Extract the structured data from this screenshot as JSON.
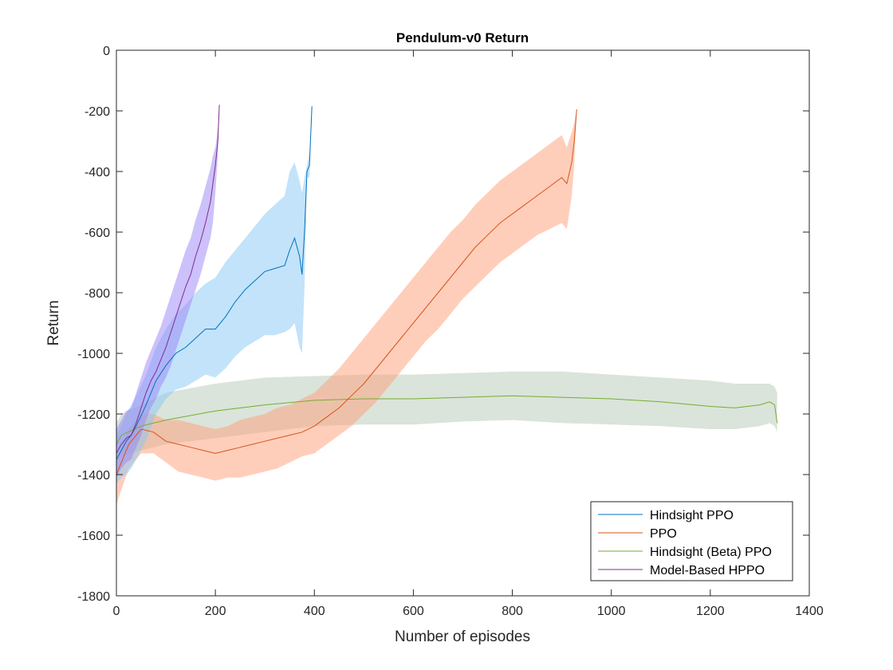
{
  "chart_data": {
    "type": "line",
    "title": "Pendulum-v0 Return",
    "xlabel": "Number of episodes",
    "ylabel": "Return",
    "xlim": [
      0,
      1400
    ],
    "ylim": [
      -1800,
      0
    ],
    "xticks": [
      0,
      200,
      400,
      600,
      800,
      1000,
      1200,
      1400
    ],
    "yticks": [
      0,
      -200,
      -400,
      -600,
      -800,
      -1000,
      -1200,
      -1400,
      -1600,
      -1800
    ],
    "xtick_labels": [
      "0",
      "200",
      "400",
      "600",
      "800",
      "1000",
      "1200",
      "1400"
    ],
    "ytick_labels": [
      "0",
      "-200",
      "-400",
      "-600",
      "-800",
      "-1000",
      "-1200",
      "-1400",
      "-1600",
      "-1800"
    ],
    "grid": false,
    "legend_position": "bottom-right",
    "series": [
      {
        "name": "Hindsight PPO",
        "color": "#0072BD",
        "band_color": "#87C8F5",
        "x": [
          0,
          10,
          20,
          30,
          40,
          60,
          80,
          100,
          120,
          140,
          160,
          180,
          200,
          220,
          240,
          260,
          280,
          300,
          320,
          340,
          350,
          360,
          370,
          375,
          380,
          385,
          390,
          395
        ],
        "mean": [
          -1350,
          -1320,
          -1290,
          -1270,
          -1240,
          -1170,
          -1090,
          -1040,
          -1000,
          -980,
          -950,
          -920,
          -920,
          -880,
          -830,
          -790,
          -760,
          -730,
          -720,
          -710,
          -660,
          -620,
          -680,
          -740,
          -600,
          -400,
          -380,
          -185
        ],
        "upper": [
          -1270,
          -1240,
          -1200,
          -1170,
          -1140,
          -1070,
          -980,
          -920,
          -870,
          -840,
          -800,
          -770,
          -750,
          -700,
          -660,
          -620,
          -580,
          -540,
          -510,
          -480,
          -400,
          -370,
          -430,
          -470,
          -420,
          -380,
          -340,
          -185
        ],
        "lower": [
          -1430,
          -1410,
          -1400,
          -1380,
          -1350,
          -1290,
          -1200,
          -1150,
          -1120,
          -1110,
          -1090,
          -1070,
          -1080,
          -1050,
          -1010,
          -980,
          -960,
          -940,
          -940,
          -930,
          -920,
          -900,
          -980,
          -1000,
          -780,
          -420,
          -420,
          -185
        ]
      },
      {
        "name": "PPO",
        "color": "#D95319",
        "band_color": "#FF9E78",
        "x": [
          0,
          10,
          25,
          50,
          75,
          100,
          125,
          150,
          175,
          200,
          225,
          250,
          275,
          300,
          325,
          350,
          375,
          400,
          425,
          450,
          475,
          500,
          525,
          550,
          575,
          600,
          625,
          650,
          675,
          700,
          725,
          750,
          775,
          800,
          825,
          850,
          875,
          900,
          910,
          920,
          925,
          930
        ],
        "mean": [
          -1400,
          -1360,
          -1300,
          -1250,
          -1260,
          -1290,
          -1300,
          -1310,
          -1320,
          -1330,
          -1320,
          -1310,
          -1300,
          -1290,
          -1280,
          -1270,
          -1260,
          -1240,
          -1210,
          -1180,
          -1140,
          -1100,
          -1050,
          -1000,
          -950,
          -900,
          -850,
          -800,
          -750,
          -700,
          -650,
          -610,
          -570,
          -540,
          -510,
          -480,
          -450,
          -420,
          -440,
          -370,
          -300,
          -195
        ],
        "upper": [
          -1350,
          -1310,
          -1250,
          -1200,
          -1200,
          -1220,
          -1220,
          -1230,
          -1240,
          -1250,
          -1240,
          -1220,
          -1210,
          -1200,
          -1180,
          -1170,
          -1150,
          -1130,
          -1090,
          -1050,
          -1000,
          -950,
          -900,
          -850,
          -800,
          -750,
          -700,
          -650,
          -600,
          -560,
          -510,
          -470,
          -430,
          -400,
          -370,
          -340,
          -310,
          -280,
          -320,
          -270,
          -240,
          -195
        ],
        "lower": [
          -1500,
          -1450,
          -1380,
          -1330,
          -1330,
          -1360,
          -1390,
          -1400,
          -1410,
          -1420,
          -1410,
          -1410,
          -1400,
          -1390,
          -1380,
          -1360,
          -1340,
          -1330,
          -1300,
          -1270,
          -1240,
          -1200,
          -1160,
          -1110,
          -1060,
          -1010,
          -960,
          -920,
          -870,
          -820,
          -780,
          -740,
          -700,
          -670,
          -640,
          -610,
          -590,
          -570,
          -590,
          -480,
          -380,
          -195
        ]
      },
      {
        "name": "Hindsight (Beta) PPO",
        "color": "#77AC30",
        "band_color": "#B5CAB5",
        "x": [
          0,
          10,
          50,
          100,
          200,
          300,
          400,
          500,
          600,
          700,
          800,
          900,
          1000,
          1100,
          1200,
          1250,
          1300,
          1320,
          1330,
          1335
        ],
        "mean": [
          -1300,
          -1270,
          -1240,
          -1220,
          -1190,
          -1170,
          -1155,
          -1150,
          -1150,
          -1145,
          -1140,
          -1145,
          -1150,
          -1160,
          -1175,
          -1180,
          -1170,
          -1160,
          -1170,
          -1230
        ],
        "upper": [
          -1230,
          -1200,
          -1170,
          -1130,
          -1100,
          -1080,
          -1075,
          -1070,
          -1070,
          -1065,
          -1060,
          -1060,
          -1070,
          -1080,
          -1090,
          -1100,
          -1100,
          -1100,
          -1110,
          -1130
        ],
        "lower": [
          -1360,
          -1340,
          -1320,
          -1300,
          -1280,
          -1260,
          -1240,
          -1235,
          -1235,
          -1225,
          -1220,
          -1230,
          -1235,
          -1240,
          -1250,
          -1250,
          -1240,
          -1230,
          -1240,
          -1260
        ]
      },
      {
        "name": "Model-Based HPPO",
        "color": "#7E2F8E",
        "band_color": "#9A84F5",
        "x": [
          0,
          10,
          20,
          30,
          40,
          50,
          60,
          70,
          80,
          90,
          100,
          110,
          120,
          130,
          140,
          150,
          160,
          170,
          180,
          190,
          195,
          200,
          205,
          208
        ],
        "mean": [
          -1330,
          -1300,
          -1280,
          -1270,
          -1230,
          -1180,
          -1130,
          -1090,
          -1060,
          -1020,
          -980,
          -930,
          -880,
          -830,
          -780,
          -740,
          -680,
          -630,
          -570,
          -500,
          -440,
          -380,
          -300,
          -180
        ],
        "upper": [
          -1250,
          -1220,
          -1190,
          -1180,
          -1130,
          -1080,
          -1030,
          -990,
          -950,
          -910,
          -860,
          -810,
          -760,
          -710,
          -660,
          -620,
          -560,
          -510,
          -450,
          -390,
          -350,
          -320,
          -260,
          -180
        ],
        "lower": [
          -1410,
          -1380,
          -1360,
          -1350,
          -1310,
          -1270,
          -1220,
          -1180,
          -1150,
          -1110,
          -1080,
          -1040,
          -990,
          -940,
          -890,
          -840,
          -790,
          -740,
          -680,
          -620,
          -570,
          -470,
          -350,
          -180
        ]
      }
    ]
  }
}
